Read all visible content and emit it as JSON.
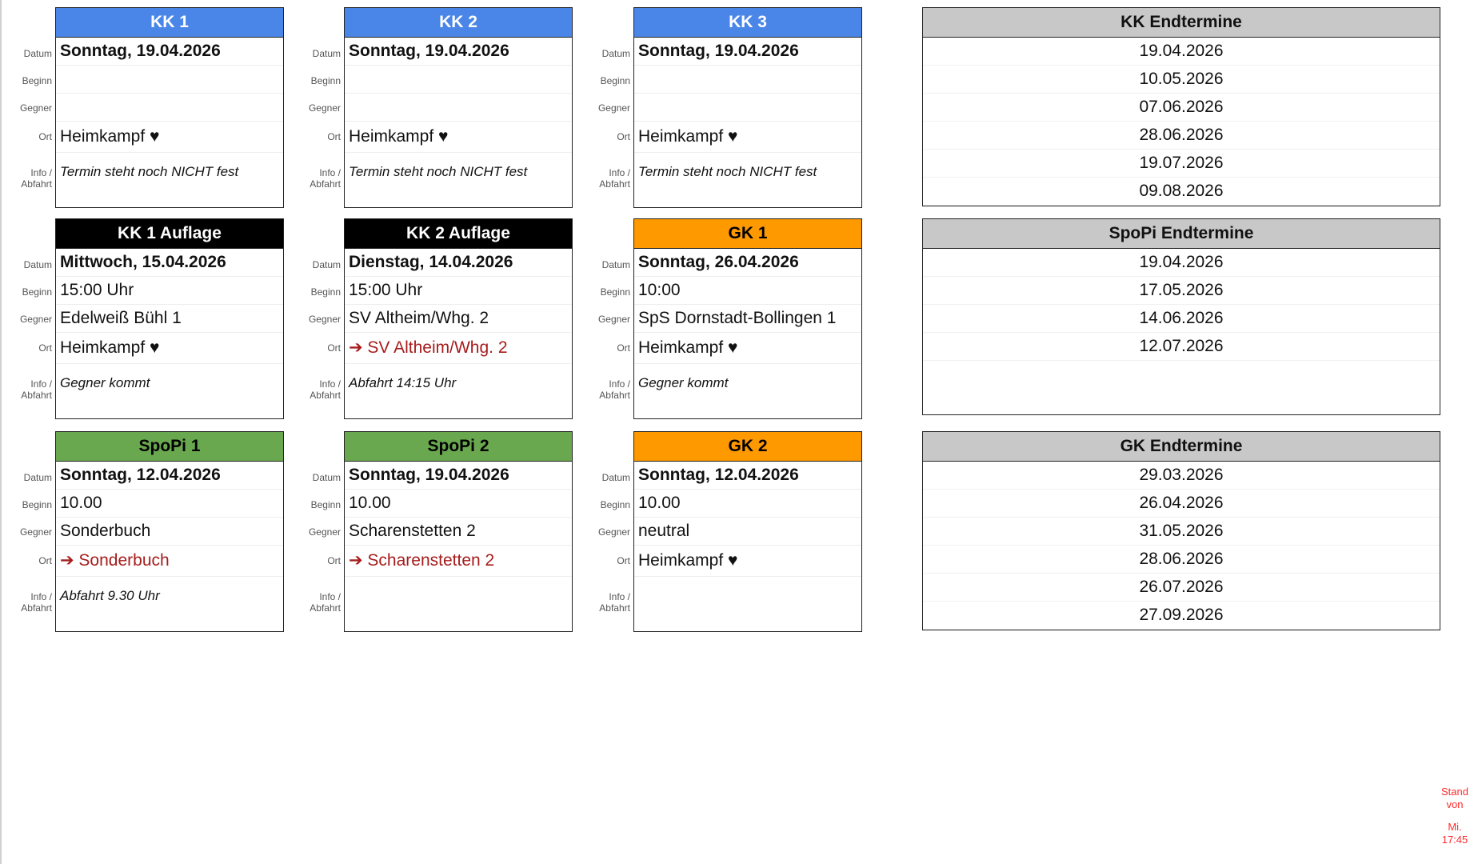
{
  "row_labels": {
    "datum": "Datum",
    "beginn": "Beginn",
    "gegner": "Gegner",
    "ort": "Ort",
    "info": "Info / Abfahrt"
  },
  "colors": {
    "kk": "#4a86e8",
    "auflage": "#000000",
    "gk": "#ff9900",
    "spopi": "#6aa84f",
    "endtermine": "#c8c8c8",
    "away": "#a61c1c",
    "stand": "#ff2a2a"
  },
  "cards": [
    {
      "title": "KK 1",
      "color": "#4a86e8",
      "text_color": "#ffffff",
      "datum": "Sonntag, 19.04.2026",
      "beginn": "",
      "gegner": "",
      "ort": "Heimkampf ♥",
      "ort_away": false,
      "info": "Termin steht noch NICHT fest"
    },
    {
      "title": "KK 2",
      "color": "#4a86e8",
      "text_color": "#ffffff",
      "datum": "Sonntag, 19.04.2026",
      "beginn": "",
      "gegner": "",
      "ort": "Heimkampf ♥",
      "ort_away": false,
      "info": "Termin steht noch NICHT fest"
    },
    {
      "title": "KK 3",
      "color": "#4a86e8",
      "text_color": "#ffffff",
      "datum": "Sonntag, 19.04.2026",
      "beginn": "",
      "gegner": "",
      "ort": "Heimkampf ♥",
      "ort_away": false,
      "info": "Termin steht noch NICHT fest"
    },
    {
      "title": "KK 1 Auflage",
      "color": "#000000",
      "text_color": "#ffffff",
      "datum": "Mittwoch, 15.04.2026",
      "beginn": "15:00 Uhr",
      "gegner": "Edelweiß Bühl 1",
      "ort": "Heimkampf ♥",
      "ort_away": false,
      "info": "Gegner kommt"
    },
    {
      "title": "KK 2 Auflage",
      "color": "#000000",
      "text_color": "#ffffff",
      "datum": "Dienstag, 14.04.2026",
      "beginn": "15:00 Uhr",
      "gegner": "SV Altheim/Whg. 2",
      "ort": "➔ SV Altheim/Whg. 2",
      "ort_away": true,
      "info": "Abfahrt 14:15 Uhr"
    },
    {
      "title": "GK 1",
      "color": "#ff9900",
      "text_color": "#000000",
      "datum": "Sonntag, 26.04.2026",
      "beginn": "10:00",
      "gegner": "SpS Dornstadt-Bollingen 1",
      "ort": "Heimkampf ♥",
      "ort_away": false,
      "info": "Gegner kommt"
    },
    {
      "title": "SpoPi 1",
      "color": "#6aa84f",
      "text_color": "#000000",
      "datum": "Sonntag, 12.04.2026",
      "beginn": "10.00",
      "gegner": "Sonderbuch",
      "ort": "➔ Sonderbuch",
      "ort_away": true,
      "info": "Abfahrt 9.30 Uhr"
    },
    {
      "title": "SpoPi 2",
      "color": "#6aa84f",
      "text_color": "#000000",
      "datum": "Sonntag, 19.04.2026",
      "beginn": "10.00",
      "gegner": "Scharenstetten 2",
      "ort": "➔ Scharenstetten 2",
      "ort_away": true,
      "info": ""
    },
    {
      "title": "GK 2",
      "color": "#ff9900",
      "text_color": "#000000",
      "datum": "Sonntag, 12.04.2026",
      "beginn": "10.00",
      "gegner": "neutral",
      "ort": "Heimkampf ♥",
      "ort_away": false,
      "info": ""
    }
  ],
  "endtermine": [
    {
      "title": "KK Endtermine",
      "dates": [
        "19.04.2026",
        "10.05.2026",
        "07.06.2026",
        "28.06.2026",
        "19.07.2026",
        "09.08.2026"
      ]
    },
    {
      "title": "SpoPi Endtermine",
      "dates": [
        "19.04.2026",
        "17.05.2026",
        "14.06.2026",
        "12.07.2026"
      ]
    },
    {
      "title": "GK Endtermine",
      "dates": [
        "29.03.2026",
        "26.04.2026",
        "31.05.2026",
        "28.06.2026",
        "26.07.2026",
        "27.09.2026"
      ]
    }
  ],
  "stand": {
    "line1": "Stand",
    "line2": "von",
    "line3": "Mi.",
    "line4": "17:45"
  }
}
